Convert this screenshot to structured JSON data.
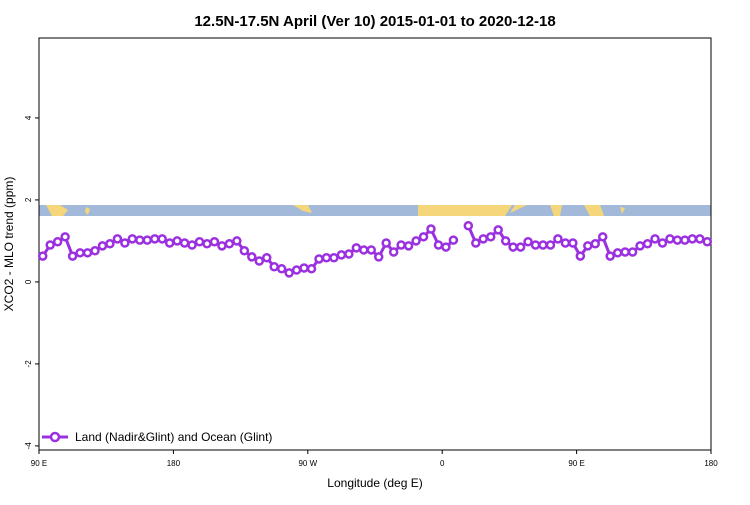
{
  "chart_data": {
    "type": "line",
    "title": "12.5N-17.5N April (Ver 10)   2015-01-01 to 2020-12-18",
    "xlabel": "Longitude (deg E)",
    "ylabel": "XCO2 - MLO trend (ppm)",
    "xlim": [
      90,
      540
    ],
    "ylim": [
      -4.1,
      5.95
    ],
    "xticks": [
      {
        "value": 90,
        "label": "90 E"
      },
      180,
      {
        "value": 270,
        "label": "90 W"
      },
      {
        "value": 360,
        "label": "0"
      },
      {
        "value": 450,
        "label": "90 E"
      },
      {
        "value": 540,
        "label": "180"
      }
    ],
    "yticks": [
      -4,
      -2,
      0,
      2,
      4
    ],
    "legend": "bottom-left",
    "x": [
      92.5,
      97.5,
      102.5,
      107.5,
      112.5,
      117.5,
      122.5,
      127.5,
      132.5,
      137.5,
      142.5,
      147.5,
      152.5,
      157.5,
      162.5,
      167.5,
      172.5,
      177.5,
      182.5,
      187.5,
      192.5,
      197.5,
      202.5,
      207.5,
      212.5,
      217.5,
      222.5,
      227.5,
      232.5,
      237.5,
      242.5,
      247.5,
      252.5,
      257.5,
      262.5,
      267.5,
      272.5,
      277.5,
      282.5,
      287.5,
      292.5,
      297.5,
      302.5,
      307.5,
      312.5,
      317.5,
      322.5,
      327.5,
      332.5,
      337.5,
      342.5,
      347.5,
      352.5,
      357.5,
      362.5,
      367.5,
      372.5,
      377.5,
      382.5,
      387.5,
      392.5,
      397.5,
      402.5,
      407.5,
      412.5,
      417.5,
      422.5,
      427.5,
      432.5,
      437.5,
      442.5,
      447.5,
      452.5,
      457.5,
      462.5,
      467.5,
      472.5,
      477.5,
      482.5,
      487.5,
      492.5,
      497.5,
      502.5,
      507.5,
      512.5,
      517.5,
      522.5,
      527.5,
      532.5,
      537.5
    ],
    "series": [
      {
        "name": "Land (Nadir&Glint) and Ocean (Glint)",
        "color": "#9b30e0",
        "values": [
          0.63,
          0.9,
          0.98,
          1.1,
          0.63,
          0.71,
          0.71,
          0.76,
          0.88,
          0.93,
          1.05,
          0.95,
          1.05,
          1.02,
          1.02,
          1.05,
          1.05,
          0.95,
          1.0,
          0.95,
          0.9,
          0.98,
          0.93,
          0.98,
          0.88,
          0.93,
          1.0,
          0.76,
          0.61,
          0.51,
          0.59,
          0.37,
          0.32,
          0.22,
          0.29,
          0.34,
          0.32,
          0.56,
          0.59,
          0.59,
          0.66,
          0.68,
          0.83,
          0.78,
          0.78,
          0.61,
          0.95,
          0.73,
          0.9,
          0.88,
          1.0,
          1.1,
          1.29,
          0.9,
          0.85,
          1.02,
          null,
          1.37,
          0.95,
          1.05,
          1.1,
          1.27,
          1.0,
          0.85,
          0.85,
          0.98,
          0.9,
          0.9,
          0.9,
          1.05,
          0.95,
          0.95,
          0.63,
          0.88,
          0.93,
          1.1,
          0.63,
          0.71,
          0.73,
          0.73,
          0.88,
          0.93,
          1.05,
          0.95,
          1.05,
          1.02,
          1.02,
          1.05,
          1.05,
          0.98
        ]
      }
    ]
  }
}
